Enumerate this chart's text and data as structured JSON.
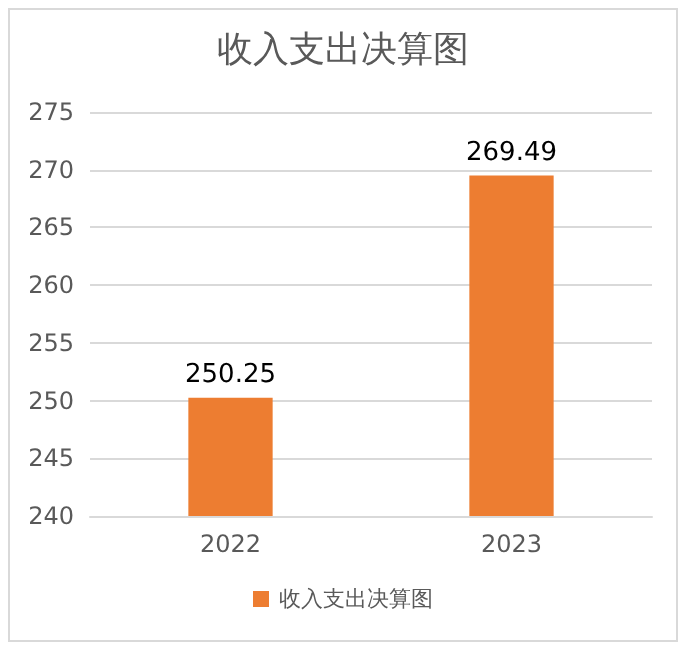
{
  "chart_data": {
    "type": "bar",
    "title": "收入支出决算图",
    "categories": [
      "2022",
      "2023"
    ],
    "series": [
      {
        "name": "收入支出决算图",
        "color": "#ed7d31",
        "values": [
          250.25,
          269.49
        ]
      }
    ],
    "ylim": [
      240,
      275
    ],
    "yticks": [
      240,
      245,
      250,
      255,
      260,
      265,
      270,
      275
    ],
    "grid": "y",
    "legend": "bottom",
    "data_labels": true
  }
}
